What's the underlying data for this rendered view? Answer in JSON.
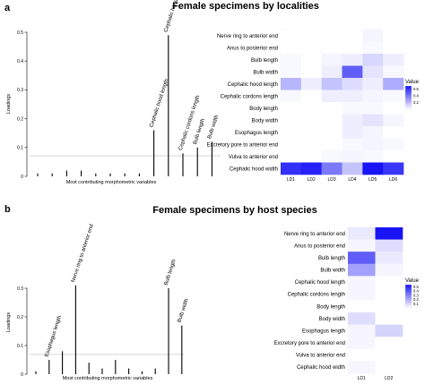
{
  "panels": [
    {
      "letter": "a",
      "title": "Female specimens by localities",
      "bar_chart": {
        "type": "bar",
        "ylabel": "Loadings",
        "xlabel": "Most contributing morphometric variables",
        "yticks": [
          "0",
          "0.1",
          "0.2",
          "0.3",
          "0.4",
          "0.5"
        ],
        "ylim": [
          0,
          0.5
        ],
        "threshold": 0.07,
        "values": [
          0.01,
          0.01,
          0.02,
          0.02,
          0.01,
          0.01,
          0.01,
          0.01,
          0.16,
          0.49,
          0.08,
          0.1,
          0.12
        ],
        "labels": [
          "",
          "",
          "",
          "",
          "",
          "",
          "",
          "",
          "Cephalic hood length",
          "Cephalic hood width",
          "Cephalic cordons length",
          "Bulb length",
          "Bulb width"
        ]
      },
      "heatmap": {
        "type": "heatmap",
        "rows": [
          "Nerve ring to anterior end",
          "Anus to posterior end",
          "Bulb length",
          "Bulb width",
          "Cephalic hood length",
          "Cephalic cordons length",
          "Body length",
          "Body width",
          "Esophagus length",
          "Excretory pore to anterior end",
          "Vulva to anterior end",
          "Cephalic hood width"
        ],
        "columns": [
          "LD1",
          "LD2",
          "LD3",
          "LD4",
          "LD5",
          "LD6"
        ],
        "values": [
          [
            0.0,
            0.0,
            0.0,
            0.0,
            0.03,
            0.0
          ],
          [
            0.0,
            0.0,
            0.0,
            0.0,
            0.02,
            0.0
          ],
          [
            0.02,
            0.0,
            0.03,
            0.05,
            0.12,
            0.05
          ],
          [
            0.02,
            0.0,
            0.05,
            0.48,
            0.08,
            0.02
          ],
          [
            0.22,
            0.05,
            0.18,
            0.1,
            0.05,
            0.25
          ],
          [
            0.02,
            0.0,
            0.05,
            0.05,
            0.03,
            0.02
          ],
          [
            0.0,
            0.0,
            0.0,
            0.02,
            0.02,
            0.0
          ],
          [
            0.0,
            0.0,
            0.0,
            0.05,
            0.08,
            0.03
          ],
          [
            0.0,
            0.0,
            0.0,
            0.05,
            0.03,
            0.0
          ],
          [
            0.0,
            0.0,
            0.0,
            0.02,
            0.03,
            0.02
          ],
          [
            0.0,
            0.0,
            0.02,
            0.03,
            0.02,
            0.0
          ],
          [
            0.62,
            0.66,
            0.4,
            0.18,
            0.7,
            0.6
          ]
        ],
        "legend_title": "Value",
        "legend_ticks": [
          "0.6",
          "0.4",
          "0.2"
        ],
        "vmax": 0.7
      }
    },
    {
      "letter": "b",
      "title": "Female specimens by host species",
      "bar_chart": {
        "type": "bar",
        "ylabel": "Loadings",
        "xlabel": "Most contributing morphometric variables",
        "yticks": [
          "0",
          "0.1",
          "0.2",
          "0.3"
        ],
        "ylim": [
          0,
          0.3
        ],
        "threshold": 0.07,
        "values": [
          0.01,
          0.05,
          0.08,
          0.31,
          0.04,
          0.02,
          0.05,
          0.02,
          0.01,
          0.02,
          0.3,
          0.17
        ],
        "labels": [
          "",
          "Esophagus length",
          "",
          "Nerve ring to anterior end",
          "",
          "",
          "",
          "",
          "",
          "",
          "Bulb length",
          "Bulb width"
        ]
      },
      "heatmap": {
        "type": "heatmap",
        "rows": [
          "Nerve ring to anterior end",
          "Anus to posterior end",
          "Bulb length",
          "Bulb width",
          "Cephalic hood length",
          "Cephalic cordons length",
          "Body length",
          "Body width",
          "Esophagus length",
          "Excretory pore to anterior end",
          "Vulva to anterior end",
          "Cephalic hood width"
        ],
        "columns": [
          "LD1",
          "LD2"
        ],
        "values": [
          [
            0.05,
            0.55
          ],
          [
            0.02,
            0.08
          ],
          [
            0.38,
            0.05
          ],
          [
            0.22,
            0.02
          ],
          [
            0.02,
            0.0
          ],
          [
            0.02,
            0.0
          ],
          [
            0.0,
            0.0
          ],
          [
            0.08,
            0.0
          ],
          [
            0.02,
            0.1
          ],
          [
            0.02,
            0.0
          ],
          [
            0.0,
            0.0
          ],
          [
            0.02,
            0.0
          ]
        ],
        "legend_title": "Value",
        "legend_ticks": [
          "0.5",
          "0.4",
          "0.3",
          "0.2",
          "0.1"
        ],
        "vmax": 0.55
      }
    }
  ]
}
